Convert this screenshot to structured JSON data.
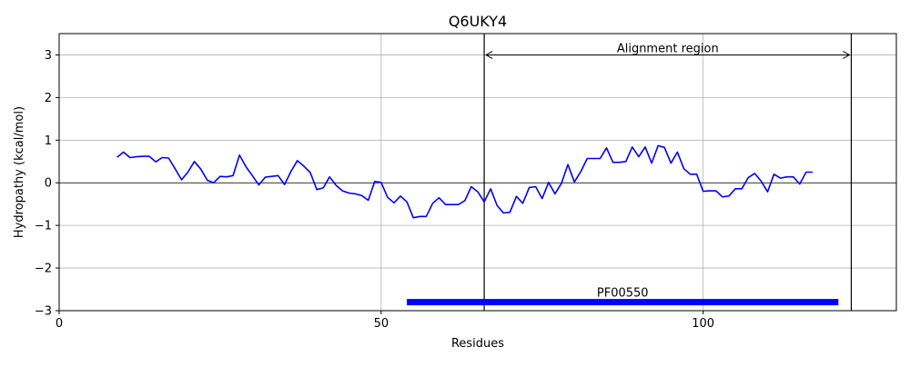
{
  "chart_data": {
    "type": "line",
    "title": "Q6UKY4",
    "xlabel": "Residues",
    "ylabel": "Hydropathy (kcal/mol)",
    "xlim": [
      0,
      130
    ],
    "ylim": [
      -3,
      3.5
    ],
    "xticks": [
      0,
      50,
      100
    ],
    "yticks": [
      -3,
      -2,
      -1,
      0,
      1,
      2,
      3
    ],
    "grid": true,
    "colors": {
      "line": "#0000ff",
      "domain_bar": "#0000ff",
      "axis": "#000000",
      "grid": "#b0b0b0"
    },
    "series": [
      {
        "x": [
          9,
          10,
          11,
          12,
          13,
          14,
          15,
          16,
          17,
          18,
          19,
          20,
          21,
          22,
          23,
          24,
          25,
          26,
          27,
          28,
          29,
          30,
          31,
          32,
          33,
          34,
          35,
          36,
          37,
          38,
          39,
          40,
          41,
          42,
          43,
          44,
          45,
          46,
          47,
          48,
          49,
          50,
          51,
          52,
          53,
          54,
          55,
          56,
          57,
          58,
          59,
          60,
          61,
          62,
          63,
          64,
          65,
          66,
          67,
          68,
          69,
          70,
          71,
          72,
          73,
          74,
          75,
          76,
          77,
          78,
          79,
          80,
          81,
          82,
          83,
          84,
          85,
          86,
          87,
          88,
          89,
          90,
          91,
          92,
          93,
          94,
          95,
          96,
          97,
          98,
          99,
          100,
          101,
          102,
          103,
          104,
          105,
          106,
          107,
          108,
          109,
          110,
          111,
          112,
          113,
          114,
          115,
          116,
          117
        ],
        "y": [
          0.6,
          0.72,
          0.59,
          0.61,
          0.62,
          0.62,
          0.49,
          0.59,
          0.58,
          0.33,
          0.07,
          0.25,
          0.5,
          0.32,
          0.06,
          0.0,
          0.15,
          0.14,
          0.17,
          0.65,
          0.38,
          0.17,
          -0.05,
          0.13,
          0.15,
          0.17,
          -0.04,
          0.27,
          0.52,
          0.39,
          0.24,
          -0.16,
          -0.12,
          0.14,
          -0.06,
          -0.19,
          -0.24,
          -0.26,
          -0.3,
          -0.41,
          0.03,
          0.01,
          -0.34,
          -0.47,
          -0.31,
          -0.45,
          -0.82,
          -0.79,
          -0.79,
          -0.48,
          -0.35,
          -0.51,
          -0.51,
          -0.51,
          -0.42,
          -0.09,
          -0.21,
          -0.45,
          -0.14,
          -0.53,
          -0.71,
          -0.69,
          -0.32,
          -0.48,
          -0.11,
          -0.09,
          -0.37,
          0.01,
          -0.26,
          -0.01,
          0.43,
          0.02,
          0.26,
          0.57,
          0.57,
          0.57,
          0.82,
          0.48,
          0.48,
          0.5,
          0.84,
          0.61,
          0.84,
          0.46,
          0.87,
          0.83,
          0.46,
          0.72,
          0.33,
          0.2,
          0.2,
          -0.2,
          -0.19,
          -0.19,
          -0.33,
          -0.31,
          -0.14,
          -0.14,
          0.12,
          0.22,
          0.04,
          -0.21,
          0.2,
          0.11,
          0.14,
          0.14,
          -0.03,
          0.25,
          0.25
        ]
      }
    ],
    "alignment_region": {
      "label": "Alignment region",
      "start": 66,
      "end": 123,
      "y": 3
    },
    "domain": {
      "label": "PF00550",
      "start": 54,
      "end": 121,
      "y": -2.8
    }
  }
}
